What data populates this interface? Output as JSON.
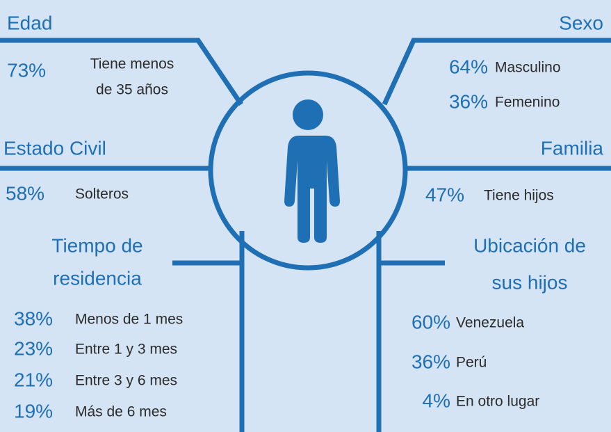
{
  "edad": {
    "title": "Edad",
    "value": "73%",
    "label": [
      "Tiene menos",
      "de 35 años"
    ]
  },
  "sexo": {
    "title": "Sexo",
    "items": [
      {
        "value": "64%",
        "label": "Masculino"
      },
      {
        "value": "36%",
        "label": "Femenino"
      }
    ]
  },
  "estado_civil": {
    "title": "Estado Civil",
    "value": "58%",
    "label": "Solteros"
  },
  "familia": {
    "title": "Familia",
    "value": "47%",
    "label": "Tiene hijos"
  },
  "tiempo": {
    "title": [
      "Tiempo de",
      "residencia"
    ],
    "items": [
      {
        "value": "38%",
        "label": "Menos de 1 mes"
      },
      {
        "value": "23%",
        "label": "Entre 1 y 3 mes"
      },
      {
        "value": "21%",
        "label": "Entre 3 y 6 mes"
      },
      {
        "value": "19%",
        "label": "Más de 6 mes"
      }
    ]
  },
  "ubicacion": {
    "title": [
      "Ubicación de",
      "sus hijos"
    ],
    "items": [
      {
        "value": "60%",
        "label": "Venezuela"
      },
      {
        "value": "36%",
        "label": "Perú"
      },
      {
        "value": "4%",
        "label": "En otro lugar"
      }
    ]
  }
}
